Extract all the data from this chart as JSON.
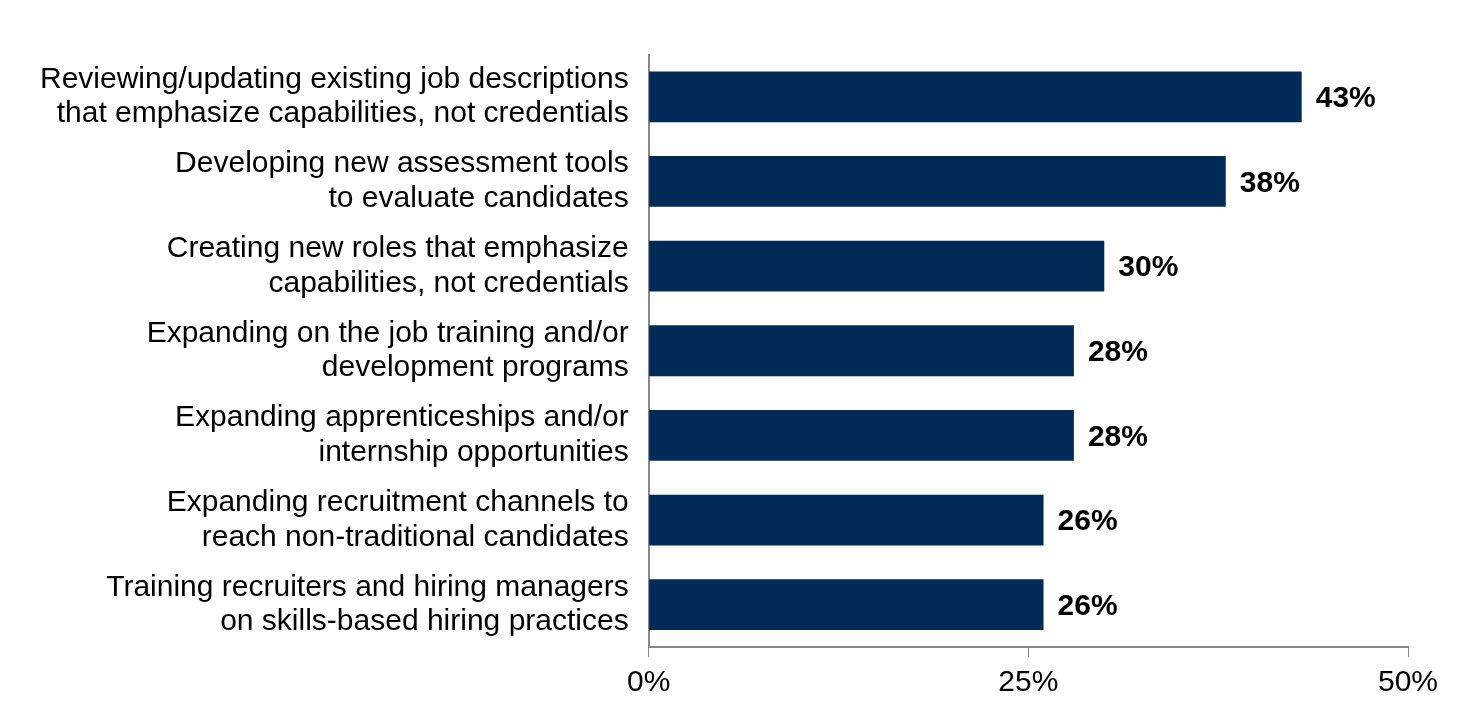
{
  "chart_data": {
    "type": "bar",
    "orientation": "horizontal",
    "categories": [
      "Reviewing/updating existing job descriptions\nthat emphasize capabilities, not credentials",
      "Developing new assessment tools\nto evaluate candidates",
      "Creating new roles that emphasize\ncapabilities, not credentials",
      "Expanding on the job training and/or\ndevelopment programs",
      "Expanding apprenticeships and/or\ninternship opportunities",
      "Expanding recruitment channels to\nreach non-traditional candidates",
      "Training recruiters and hiring managers\non skills-based hiring practices"
    ],
    "values": [
      43,
      38,
      30,
      28,
      28,
      26,
      26
    ],
    "value_labels": [
      "43%",
      "38%",
      "30%",
      "28%",
      "28%",
      "26%",
      "26%"
    ],
    "color": "#012a57",
    "xlim": [
      0,
      50
    ],
    "xticks": [
      {
        "value": 0,
        "label": "0%"
      },
      {
        "value": 25,
        "label": "25%"
      },
      {
        "value": 50,
        "label": "50%"
      }
    ],
    "grid": false,
    "legend": false
  }
}
